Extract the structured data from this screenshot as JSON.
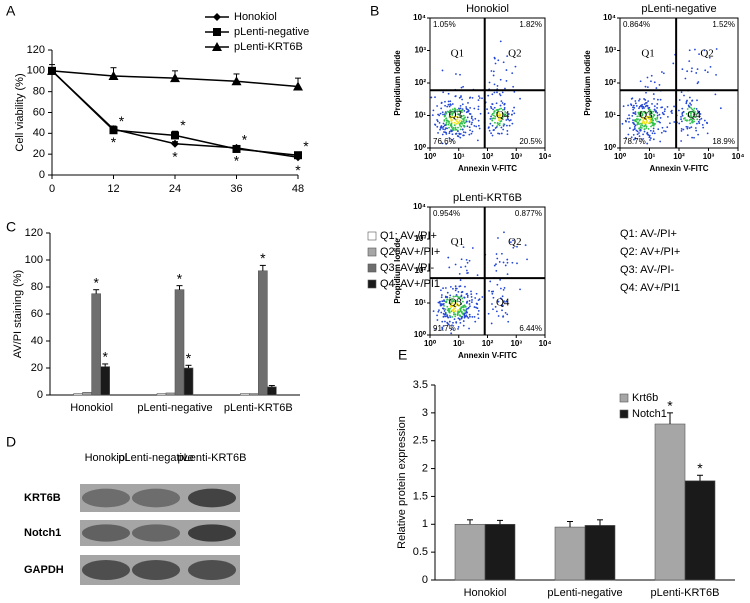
{
  "chart_data": [
    {
      "type": "line",
      "panel_label": "A",
      "ylabel": "Cell viability (%)",
      "x": [
        0,
        12,
        24,
        36,
        48
      ],
      "xlim": [
        0,
        48
      ],
      "xticks": [
        0,
        12,
        24,
        36,
        48
      ],
      "ylim": [
        0,
        120
      ],
      "yticks": [
        0,
        20,
        40,
        60,
        80,
        100,
        120
      ],
      "series": [
        {
          "name": "Honokiol",
          "marker": "diamond",
          "color": "#000000",
          "values": [
            100,
            44,
            30,
            26,
            17
          ],
          "errors": [
            0,
            3,
            2,
            2,
            3
          ],
          "significance": [
            null,
            "*",
            "*",
            "*",
            "*"
          ]
        },
        {
          "name": "pLenti-negative",
          "marker": "square",
          "color": "#000000",
          "values": [
            100,
            43,
            38,
            25,
            19
          ],
          "errors": [
            0,
            3,
            4,
            3,
            3
          ],
          "significance": [
            null,
            "*",
            "*",
            "*",
            "*"
          ]
        },
        {
          "name": "pLenti-KRT6B",
          "marker": "triangle",
          "color": "#000000",
          "values": [
            100,
            95,
            93,
            90,
            85
          ],
          "errors": [
            6,
            8,
            7,
            7,
            8
          ]
        }
      ]
    },
    {
      "type": "flow",
      "panel_label": "B",
      "title": "Honokiol",
      "xlabel": "Annexin V-FITC",
      "ylabel": "Propidium Iodide",
      "log_scale": true,
      "xlim": [
        1,
        10000
      ],
      "ylim": [
        1,
        10000
      ],
      "xticks": [
        {
          "value": 1,
          "label": "10⁰"
        },
        {
          "value": 10,
          "label": "10¹"
        },
        {
          "value": 100,
          "label": "10²"
        },
        {
          "value": 1000,
          "label": "10³"
        },
        {
          "value": 10000,
          "label": "10⁴"
        }
      ],
      "yticks": [
        {
          "value": 1,
          "label": "10⁰"
        },
        {
          "value": 10,
          "label": "10¹"
        },
        {
          "value": 100,
          "label": "10²"
        },
        {
          "value": 1000,
          "label": "10³"
        },
        {
          "value": 10000,
          "label": "10⁴"
        }
      ],
      "gate": {
        "x": 80,
        "y": 60
      },
      "categories": [
        "Q1",
        "Q2",
        "Q3",
        "Q4"
      ],
      "values": [
        1.05,
        1.82,
        76.6,
        20.5
      ],
      "value_labels": [
        "1.05%",
        "1.82%",
        "76.6%",
        "20.5%"
      ]
    },
    {
      "type": "flow",
      "title": "pLenti-negative",
      "xlabel": "Annexin V-FITC",
      "ylabel": "Propidium Iodide",
      "log_scale": true,
      "xlim": [
        1,
        10000
      ],
      "ylim": [
        1,
        10000
      ],
      "xticks": [
        {
          "value": 1,
          "label": "10⁰"
        },
        {
          "value": 10,
          "label": "10¹"
        },
        {
          "value": 100,
          "label": "10²"
        },
        {
          "value": 1000,
          "label": "10³"
        },
        {
          "value": 10000,
          "label": "10⁴"
        }
      ],
      "yticks": [
        {
          "value": 1,
          "label": "10⁰"
        },
        {
          "value": 10,
          "label": "10¹"
        },
        {
          "value": 100,
          "label": "10²"
        },
        {
          "value": 1000,
          "label": "10³"
        },
        {
          "value": 10000,
          "label": "10⁴"
        }
      ],
      "gate": {
        "x": 80,
        "y": 60
      },
      "categories": [
        "Q1",
        "Q2",
        "Q3",
        "Q4"
      ],
      "values": [
        0.864,
        1.52,
        78.7,
        18.9
      ],
      "value_labels": [
        "0.864%",
        "1.52%",
        "78.7%",
        "18.9%"
      ]
    },
    {
      "type": "flow",
      "title": "pLenti-KRT6B",
      "xlabel": "Annexin V-FITC",
      "ylabel": "Propidium Iodide",
      "log_scale": true,
      "xlim": [
        1,
        10000
      ],
      "ylim": [
        1,
        10000
      ],
      "xticks": [
        {
          "value": 1,
          "label": "10⁰"
        },
        {
          "value": 10,
          "label": "10¹"
        },
        {
          "value": 100,
          "label": "10²"
        },
        {
          "value": 1000,
          "label": "10³"
        },
        {
          "value": 10000,
          "label": "10⁴"
        }
      ],
      "yticks": [
        {
          "value": 1,
          "label": "10⁰"
        },
        {
          "value": 10,
          "label": "10¹"
        },
        {
          "value": 100,
          "label": "10²"
        },
        {
          "value": 1000,
          "label": "10³"
        },
        {
          "value": 10000,
          "label": "10⁴"
        }
      ],
      "gate": {
        "x": 80,
        "y": 60
      },
      "categories": [
        "Q1",
        "Q2",
        "Q3",
        "Q4"
      ],
      "values": [
        0.954,
        0.877,
        91.7,
        6.44
      ],
      "value_labels": [
        "0.954%",
        "0.877%",
        "91.7%",
        "6.44%"
      ]
    },
    {
      "type": "bar",
      "panel_label": "C",
      "ylabel": "AV/PI staining (%)",
      "categories": [
        "Honokiol",
        "pLenti-negative",
        "pLenti-KRT6B"
      ],
      "ylim": [
        0,
        120
      ],
      "yticks": [
        0,
        20,
        40,
        60,
        80,
        100,
        120
      ],
      "series": [
        {
          "name": "Q1: AV-/PI+",
          "color": "#ffffff",
          "values": [
            1,
            1,
            1
          ]
        },
        {
          "name": "Q2: AV+/PI+",
          "color": "#a6a6a6",
          "values": [
            2,
            1.5,
            1
          ]
        },
        {
          "name": "Q3: AV-/PI-",
          "color": "#6e6e6e",
          "values": [
            75,
            78,
            92
          ],
          "errors": [
            3,
            3,
            4
          ],
          "significance": [
            "*",
            "*",
            "*"
          ]
        },
        {
          "name": "Q4: AV+/PI1",
          "color": "#1a1a1a",
          "values": [
            21,
            20,
            6
          ],
          "errors": [
            2,
            2,
            1
          ],
          "significance": [
            "*",
            "*",
            null
          ]
        }
      ]
    },
    {
      "type": "bar",
      "panel_label": "E",
      "ylabel": "Relative protein expression",
      "categories": [
        "Honokiol",
        "pLenti-negative",
        "pLenti-KRT6B"
      ],
      "ylim": [
        0,
        3.5
      ],
      "yticks": [
        0,
        0.5,
        1,
        1.5,
        2,
        2.5,
        3,
        3.5
      ],
      "series": [
        {
          "name": "Krt6b",
          "color": "#a6a6a6",
          "values": [
            1.0,
            0.95,
            2.8
          ],
          "errors": [
            0.08,
            0.1,
            0.2
          ],
          "significance": [
            null,
            null,
            "*"
          ]
        },
        {
          "name": "Notch1",
          "color": "#1a1a1a",
          "values": [
            1.0,
            0.98,
            1.78
          ],
          "errors": [
            0.07,
            0.1,
            0.1
          ],
          "significance": [
            null,
            null,
            "*"
          ]
        }
      ]
    }
  ],
  "quadrant_legend": [
    "Q1: AV-/PI+",
    "Q2: AV+/PI+",
    "Q3: AV-/PI-",
    "Q4: AV+/PI1"
  ],
  "blot": {
    "panel_label": "D",
    "lanes": [
      "Honokiol",
      "pLenti-negative",
      "pLenti-KRT6B"
    ],
    "rows": [
      "KRT6B",
      "Notch1",
      "GAPDH"
    ]
  }
}
